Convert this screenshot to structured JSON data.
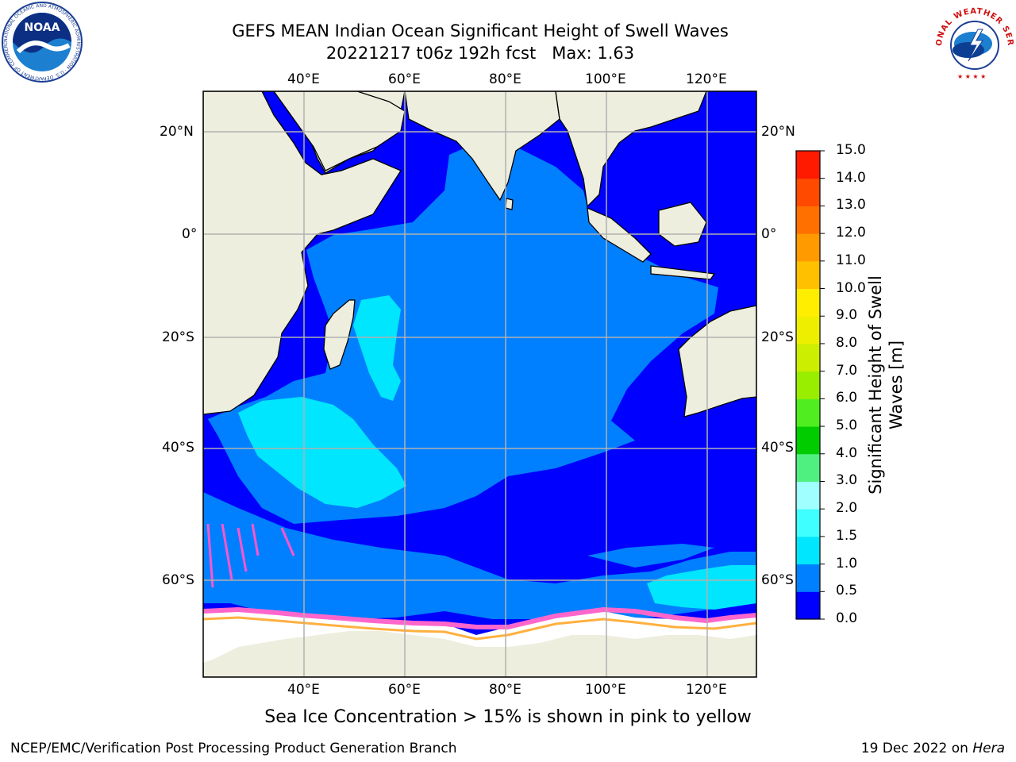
{
  "header": {
    "title_line1": "GEFS MEAN Indian Ocean Significant Height of Swell Waves",
    "title_line2": "20221217 t06z 192h fcst   Max: 1.63"
  },
  "logos": {
    "left_text": "NOAA",
    "left_ring_text": "NATIONAL OCEANIC AND ATMOSPHERIC ADMINISTRATION · U.S. DEPARTMENT OF COMMERCE",
    "right_ring_text": "NATIONAL WEATHER SERVICE"
  },
  "map": {
    "lon_labels_top": [
      "40°E",
      "60°E",
      "80°E",
      "100°E",
      "120°E"
    ],
    "lon_labels_bottom": [
      "40°E",
      "60°E",
      "80°E",
      "100°E",
      "120°E"
    ],
    "lat_labels_left": [
      "20°N",
      "0°",
      "20°S",
      "40°S",
      "60°S"
    ],
    "lat_labels_right": [
      "20°N",
      "0°",
      "20°S",
      "40°S",
      "60°S"
    ],
    "colors": {
      "land": "#eeeedf",
      "ice": "#ffffff",
      "bin_0": "#0000ff",
      "bin_0_5": "#0080ff",
      "bin_1": "#00e6ff",
      "gridline": "#b0b0b0"
    }
  },
  "colorbar": {
    "title": "Significant Height of Swell Waves [m]",
    "tick_labels": [
      "0.0",
      "0.5",
      "1.0",
      "1.5",
      "2.0",
      "3.0",
      "4.0",
      "5.0",
      "6.0",
      "7.0",
      "8.0",
      "9.0",
      "10.0",
      "11.0",
      "12.0",
      "13.0",
      "14.0",
      "15.0"
    ],
    "colors": [
      "#0000ff",
      "#0080ff",
      "#00e6ff",
      "#40ffff",
      "#a0ffff",
      "#50f080",
      "#00cc00",
      "#50ee20",
      "#99ee00",
      "#ccee00",
      "#eeee00",
      "#ffee00",
      "#ffc000",
      "#ff9a00",
      "#ff7000",
      "#ff4a00",
      "#ff1a00"
    ]
  },
  "footer": {
    "caption": "Sea Ice Concentration > 15% is shown in pink to yellow",
    "credit": "NCEP/EMC/Verification Post Processing Product Generation Branch",
    "date_prefix": "19 Dec 2022 on ",
    "date_host": "Hera"
  }
}
